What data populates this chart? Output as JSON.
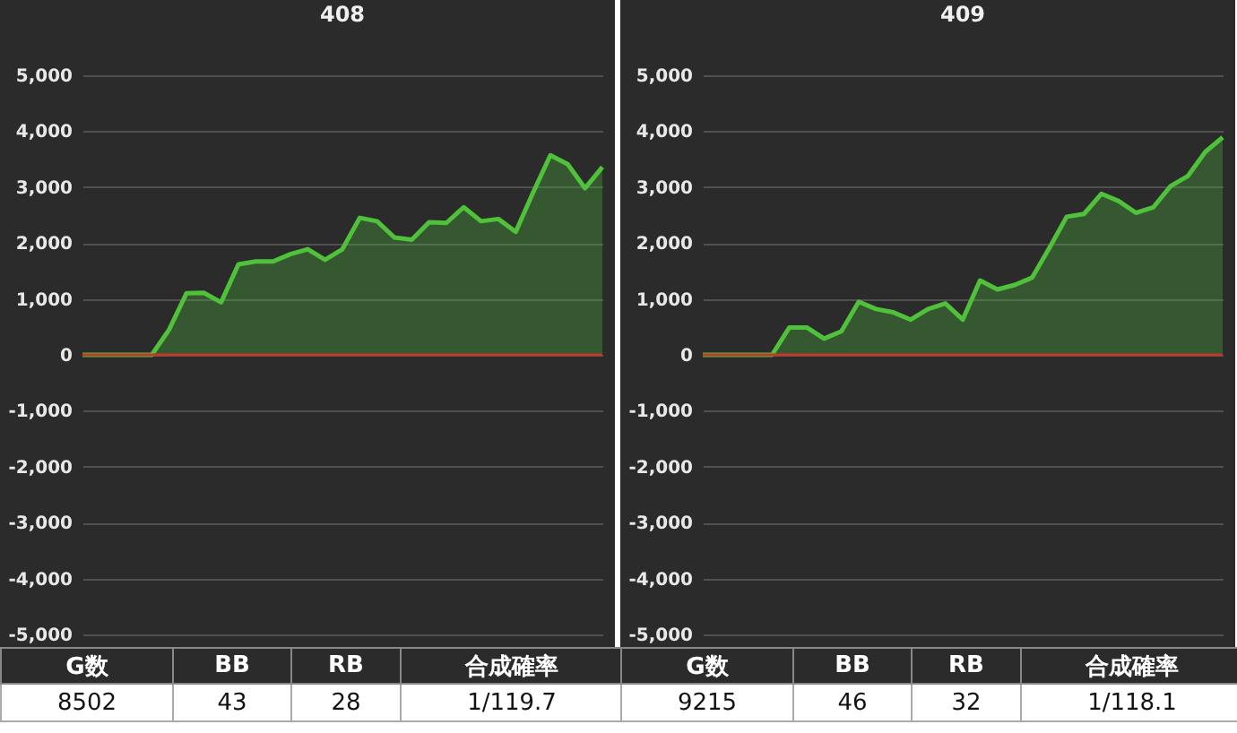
{
  "chart_data": [
    {
      "type": "area",
      "title": "408",
      "categories": [
        null,
        null,
        null,
        null,
        null,
        null,
        null,
        null,
        null,
        null,
        null,
        null,
        null,
        null,
        null,
        null,
        null,
        null,
        null,
        null,
        null,
        null,
        null,
        null,
        null,
        null,
        null,
        null,
        null,
        null,
        null
      ],
      "series": [
        {
          "color": "#4fc13a",
          "values": [
            0,
            0,
            0,
            0,
            0,
            450,
            1100,
            1110,
            940,
            1620,
            1670,
            1670,
            1800,
            1890,
            1700,
            1890,
            2450,
            2390,
            2100,
            2060,
            2370,
            2360,
            2640,
            2390,
            2430,
            2200,
            2900,
            3570,
            3410,
            2980,
            3360
          ]
        }
      ],
      "ylim": [
        -5000,
        5000
      ],
      "yticks": [
        {
          "value": 5000,
          "label": "5,000"
        },
        {
          "value": 4000,
          "label": "4,000"
        },
        {
          "value": 3000,
          "label": "3,000"
        },
        {
          "value": 2000,
          "label": "2,000"
        },
        {
          "value": 1000,
          "label": "1,000"
        },
        0,
        {
          "value": -1000,
          "label": "-1,000"
        },
        {
          "value": -2000,
          "label": "-2,000"
        },
        {
          "value": -3000,
          "label": "-3,000"
        },
        {
          "value": -4000,
          "label": "-4,000"
        },
        {
          "value": -5000,
          "label": "-5,000"
        }
      ],
      "grid": "y",
      "tick_labels": "y",
      "ref_lines": [
        {
          "axis": "y",
          "value": 0,
          "color": "#c0392b"
        }
      ],
      "annotations": [
        "G数",
        "BB",
        "RB",
        "合成確率",
        "8502",
        "43",
        "28",
        "1/119.7"
      ]
    },
    {
      "type": "area",
      "title": "409",
      "categories": [
        null,
        null,
        null,
        null,
        null,
        null,
        null,
        null,
        null,
        null,
        null,
        null,
        null,
        null,
        null,
        null,
        null,
        null,
        null,
        null,
        null,
        null,
        null,
        null,
        null,
        null,
        null,
        null,
        null,
        null,
        null
      ],
      "series": [
        {
          "color": "#4fc13a",
          "values": [
            0,
            0,
            0,
            0,
            0,
            490,
            490,
            290,
            420,
            950,
            820,
            760,
            630,
            820,
            920,
            630,
            1330,
            1170,
            1250,
            1380,
            1910,
            2470,
            2520,
            2880,
            2750,
            2540,
            2640,
            3020,
            3200,
            3630,
            3890
          ]
        }
      ],
      "ylim": [
        -5000,
        5000
      ],
      "yticks": [
        {
          "value": 5000,
          "label": "5,000"
        },
        {
          "value": 4000,
          "label": "4,000"
        },
        {
          "value": 3000,
          "label": "3,000"
        },
        {
          "value": 2000,
          "label": "2,000"
        },
        {
          "value": 1000,
          "label": "1,000"
        },
        0,
        {
          "value": -1000,
          "label": "-1,000"
        },
        {
          "value": -2000,
          "label": "-2,000"
        },
        {
          "value": -3000,
          "label": "-3,000"
        },
        {
          "value": -4000,
          "label": "-4,000"
        },
        {
          "value": -5000,
          "label": "-5,000"
        }
      ],
      "grid": "y",
      "tick_labels": "y",
      "ref_lines": [
        {
          "axis": "y",
          "value": 0,
          "color": "#c0392b"
        }
      ],
      "annotations": [
        "G数",
        "BB",
        "RB",
        "合成確率",
        "9215",
        "46",
        "32",
        "1/118.1"
      ]
    }
  ]
}
